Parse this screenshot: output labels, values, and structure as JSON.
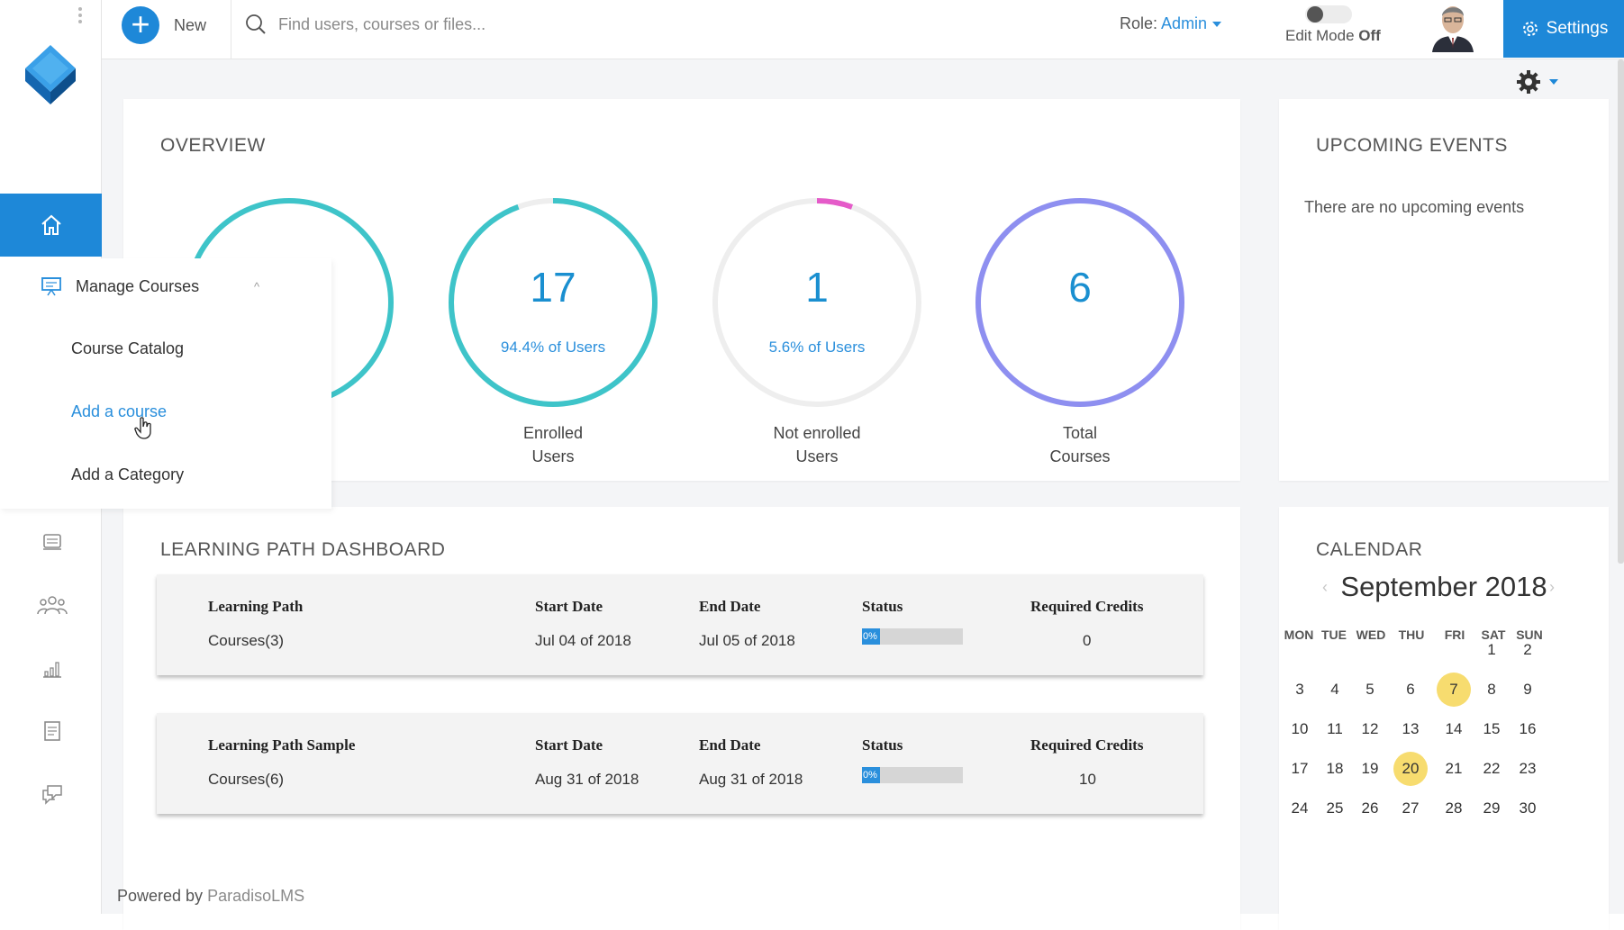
{
  "topbar": {
    "new_label": "New",
    "search_placeholder": "Find users, courses or files...",
    "role_label": "Role:",
    "role_value": "Admin",
    "edit_mode_label": "Edit Mode",
    "edit_mode_state": "Off",
    "settings_label": "Settings"
  },
  "submenu": {
    "title": "Manage Courses",
    "items": [
      "Course Catalog",
      "Add a course",
      "Add a Category"
    ]
  },
  "overview": {
    "title": "OVERVIEW",
    "metrics": [
      {
        "value": "",
        "percent": "",
        "label_line1": "",
        "label_line2": ""
      },
      {
        "value": "17",
        "percent": "94.4% of Users",
        "label_line1": "Enrolled",
        "label_line2": "Users"
      },
      {
        "value": "1",
        "percent": "5.6% of Users",
        "label_line1": "Not enrolled",
        "label_line2": "Users"
      },
      {
        "value": "6",
        "percent": "",
        "label_line1": "Total",
        "label_line2": "Courses"
      }
    ]
  },
  "events": {
    "title": "UPCOMING EVENTS",
    "empty_text": "There are no upcoming events"
  },
  "learning_paths": {
    "title": "LEARNING PATH DASHBOARD",
    "rows": [
      {
        "name_header": "Learning Path",
        "name_value": "Courses(3)",
        "start_header": "Start Date",
        "start_value": "Jul 04 of 2018",
        "end_header": "End Date",
        "end_value": "Jul 05 of 2018",
        "status_header": "Status",
        "status_value": "0%",
        "credits_header": "Required Credits",
        "credits_value": "0"
      },
      {
        "name_header": "Learning Path Sample",
        "name_value": "Courses(6)",
        "start_header": "Start Date",
        "start_value": "Aug 31 of 2018",
        "end_header": "End Date",
        "end_value": "Aug 31 of 2018",
        "status_header": "Status",
        "status_value": "0%",
        "credits_header": "Required Credits",
        "credits_value": "10"
      }
    ]
  },
  "calendar": {
    "title": "CALENDAR",
    "month": "September 2018",
    "prev_icon": "chevron-left-icon",
    "next_icon": "chevron-right-icon",
    "dow": [
      "MON",
      "TUE",
      "WED",
      "THU",
      "FRI",
      "SAT",
      "SUN"
    ],
    "highlighted_days": [
      "7",
      "20"
    ]
  },
  "footer": {
    "powered_by": "Powered by",
    "brand": "ParadisoLMS"
  },
  "colors": {
    "accent": "#1e88d8",
    "teal_ring": "#3ec4c9",
    "pink_ring": "#e55bc9",
    "purple_ring": "#8e8ff0",
    "highlight": "#f7dc6f"
  }
}
